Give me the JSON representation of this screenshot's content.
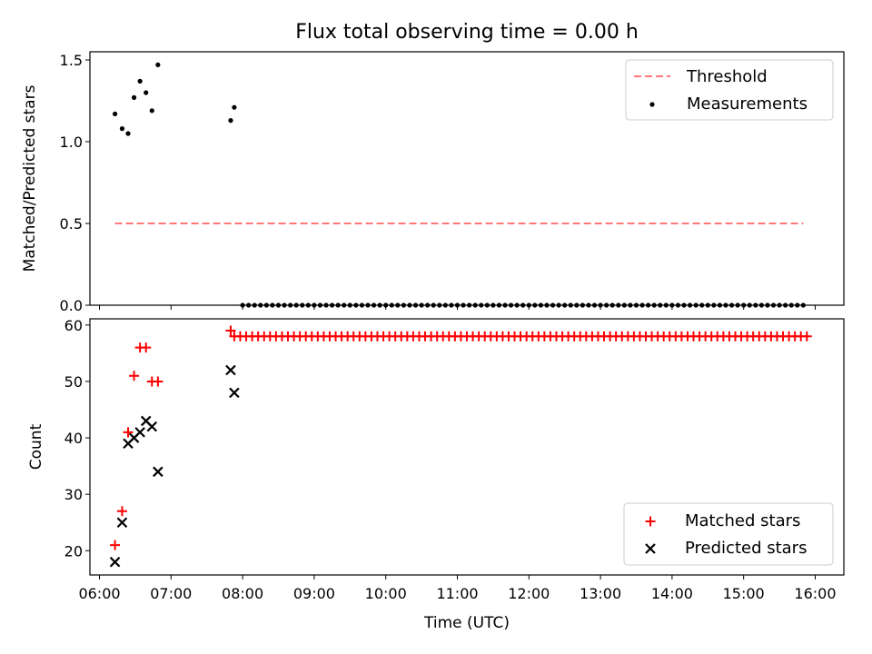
{
  "title": "Flux total observing time = 0.00 h",
  "colors": {
    "threshold": "#ff7777",
    "measurement": "#000000",
    "matched": "#ff0000",
    "predicted": "#000000"
  },
  "chart_data": [
    {
      "type": "scatter",
      "ylabel": "Matched/Predicted stars",
      "ylim": [
        0,
        1.55
      ],
      "yticks": [
        0.0,
        0.5,
        1.0,
        1.5
      ],
      "xlim": [
        "05:52",
        "16:24"
      ],
      "legend_position": "top-right",
      "legend": [
        "Threshold",
        "Measurements"
      ],
      "threshold": {
        "name": "Threshold",
        "y": 0.5,
        "x_start": "06:13",
        "x_end": "15:50",
        "style": "dashed"
      },
      "series": [
        {
          "name": "Measurements",
          "marker": "dot",
          "points": [
            [
              "06:13",
              1.17
            ],
            [
              "06:19",
              1.08
            ],
            [
              "06:24",
              1.05
            ],
            [
              "06:29",
              1.27
            ],
            [
              "06:34",
              1.37
            ],
            [
              "06:39",
              1.3
            ],
            [
              "06:44",
              1.19
            ],
            [
              "06:49",
              1.47
            ],
            [
              "07:50",
              1.13
            ],
            [
              "07:53",
              1.21
            ]
          ],
          "zeros_from": "08:00",
          "zeros_to": "15:50",
          "zeros_step_min": 5,
          "zeros_value": 0.0
        }
      ]
    },
    {
      "type": "scatter",
      "xlabel": "Time (UTC)",
      "ylabel": "Count",
      "ylim": [
        15.7,
        61.1
      ],
      "yticks": [
        20,
        30,
        40,
        50,
        60
      ],
      "xlim": [
        "05:52",
        "16:24"
      ],
      "xticks": [
        "06:00",
        "07:00",
        "08:00",
        "09:00",
        "10:00",
        "11:00",
        "12:00",
        "13:00",
        "14:00",
        "15:00",
        "16:00"
      ],
      "legend_position": "bottom-right",
      "legend": [
        "Matched stars",
        "Predicted stars"
      ],
      "series": [
        {
          "name": "Matched stars",
          "marker": "plus",
          "points": [
            [
              "06:13",
              21
            ],
            [
              "06:19",
              27
            ],
            [
              "06:24",
              41
            ],
            [
              "06:29",
              51
            ],
            [
              "06:34",
              56
            ],
            [
              "06:39",
              56
            ],
            [
              "06:44",
              50
            ],
            [
              "06:49",
              50
            ],
            [
              "07:50",
              59
            ]
          ],
          "constant_from": "07:53",
          "constant_to": "15:55",
          "constant_step_min": 5,
          "constant_value": 58
        },
        {
          "name": "Predicted stars",
          "marker": "x",
          "points": [
            [
              "06:13",
              18
            ],
            [
              "06:19",
              25
            ],
            [
              "06:24",
              39
            ],
            [
              "06:29",
              40
            ],
            [
              "06:34",
              41
            ],
            [
              "06:39",
              43
            ],
            [
              "06:44",
              42
            ],
            [
              "06:49",
              34
            ],
            [
              "07:50",
              52
            ],
            [
              "07:53",
              48
            ]
          ]
        }
      ]
    }
  ]
}
